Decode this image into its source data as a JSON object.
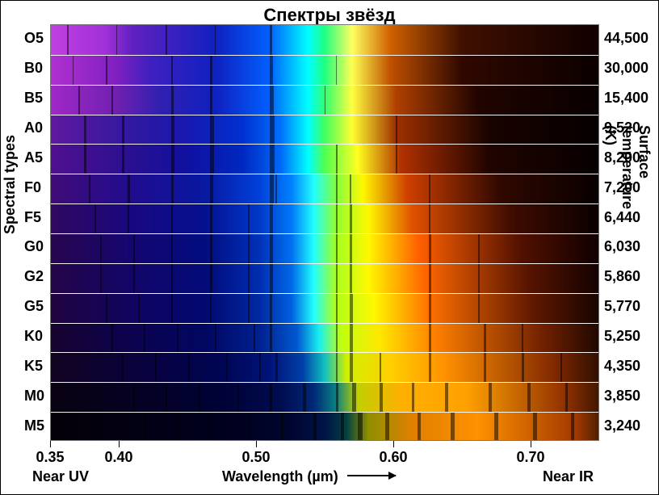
{
  "title": "Спектры звёзд",
  "title_fontsize": 22,
  "left_axis_title": "Spectral types",
  "right_axis_title": "Surface temperature (K)",
  "x_label_center": "Wavelength  (µm)",
  "x_near_uv": "Near UV",
  "x_near_ir": "Near IR",
  "axis_fontsize": 18,
  "row_label_fontsize": 18,
  "temp_label_fontsize": 18,
  "tick_fontsize": 18,
  "chart": {
    "type": "spectral-strips",
    "x_min_um": 0.35,
    "x_max_um": 0.75,
    "x_ticks": [
      0.35,
      0.4,
      0.5,
      0.6,
      0.7
    ],
    "row_separator_color": "#ffffff",
    "border_color": "#777777",
    "background_color": "#ffffff"
  },
  "rows": [
    {
      "type": "O5",
      "temp": "44,500",
      "gradient": [
        [
          "0%",
          "#c040e0"
        ],
        [
          "10%",
          "#a030d8"
        ],
        [
          "15%",
          "#6020c0"
        ],
        [
          "30%",
          "#1020c0"
        ],
        [
          "40%",
          "#0060ff"
        ],
        [
          "47%",
          "#00ffff"
        ],
        [
          "50%",
          "#20ff80"
        ],
        [
          "55%",
          "#ffff60"
        ],
        [
          "62%",
          "#d06000"
        ],
        [
          "75%",
          "#401000"
        ],
        [
          "100%",
          "#100000"
        ]
      ],
      "lines": [
        {
          "x": 0.03,
          "w": 2
        },
        {
          "x": 0.12,
          "w": 1
        },
        {
          "x": 0.21,
          "w": 2
        },
        {
          "x": 0.3,
          "w": 1
        },
        {
          "x": 0.4,
          "w": 3
        }
      ]
    },
    {
      "type": "B0",
      "temp": "30,000",
      "gradient": [
        [
          "0%",
          "#b030d0"
        ],
        [
          "12%",
          "#8020c0"
        ],
        [
          "18%",
          "#4020c0"
        ],
        [
          "30%",
          "#1020c0"
        ],
        [
          "40%",
          "#0060ff"
        ],
        [
          "47%",
          "#00ffff"
        ],
        [
          "50%",
          "#20ff80"
        ],
        [
          "55%",
          "#ffff50"
        ],
        [
          "62%",
          "#c05000"
        ],
        [
          "75%",
          "#300800"
        ],
        [
          "100%",
          "#0a0000"
        ]
      ],
      "lines": [
        {
          "x": 0.04,
          "w": 1
        },
        {
          "x": 0.1,
          "w": 2
        },
        {
          "x": 0.22,
          "w": 2
        },
        {
          "x": 0.29,
          "w": 3
        },
        {
          "x": 0.4,
          "w": 4
        },
        {
          "x": 0.52,
          "w": 1
        }
      ]
    },
    {
      "type": "B5",
      "temp": "15,400",
      "gradient": [
        [
          "0%",
          "#a028c8"
        ],
        [
          "12%",
          "#7020b0"
        ],
        [
          "20%",
          "#3020b0"
        ],
        [
          "30%",
          "#1020c0"
        ],
        [
          "40%",
          "#0060ff"
        ],
        [
          "47%",
          "#00ffff"
        ],
        [
          "50%",
          "#30ff70"
        ],
        [
          "55%",
          "#ffff40"
        ],
        [
          "63%",
          "#b04000"
        ],
        [
          "78%",
          "#200400"
        ],
        [
          "100%",
          "#080000"
        ]
      ],
      "lines": [
        {
          "x": 0.05,
          "w": 2
        },
        {
          "x": 0.11,
          "w": 2
        },
        {
          "x": 0.22,
          "w": 3
        },
        {
          "x": 0.29,
          "w": 3
        },
        {
          "x": 0.4,
          "w": 5
        },
        {
          "x": 0.5,
          "w": 1
        }
      ]
    },
    {
      "type": "A0",
      "temp": "9,520",
      "gradient": [
        [
          "0%",
          "#6018a0"
        ],
        [
          "15%",
          "#3018a0"
        ],
        [
          "25%",
          "#1818b0"
        ],
        [
          "35%",
          "#0030d0"
        ],
        [
          "42%",
          "#0070ff"
        ],
        [
          "47%",
          "#00ffff"
        ],
        [
          "50%",
          "#40ff60"
        ],
        [
          "55%",
          "#ffff30"
        ],
        [
          "63%",
          "#a03000"
        ],
        [
          "80%",
          "#180300"
        ],
        [
          "100%",
          "#060000"
        ]
      ],
      "lines": [
        {
          "x": 0.06,
          "w": 3
        },
        {
          "x": 0.13,
          "w": 3
        },
        {
          "x": 0.22,
          "w": 4
        },
        {
          "x": 0.29,
          "w": 5
        },
        {
          "x": 0.4,
          "w": 6
        },
        {
          "x": 0.63,
          "w": 2
        }
      ]
    },
    {
      "type": "A5",
      "temp": "8,200",
      "gradient": [
        [
          "0%",
          "#501090"
        ],
        [
          "15%",
          "#281090"
        ],
        [
          "25%",
          "#1010a0"
        ],
        [
          "35%",
          "#0028c0"
        ],
        [
          "42%",
          "#0068f8"
        ],
        [
          "47%",
          "#00ffff"
        ],
        [
          "50%",
          "#50ff50"
        ],
        [
          "56%",
          "#ffff20"
        ],
        [
          "64%",
          "#b03000"
        ],
        [
          "80%",
          "#200400"
        ],
        [
          "100%",
          "#060000"
        ]
      ],
      "lines": [
        {
          "x": 0.06,
          "w": 3
        },
        {
          "x": 0.13,
          "w": 3
        },
        {
          "x": 0.22,
          "w": 4
        },
        {
          "x": 0.29,
          "w": 5
        },
        {
          "x": 0.4,
          "w": 6
        },
        {
          "x": 0.52,
          "w": 2
        },
        {
          "x": 0.63,
          "w": 2
        }
      ]
    },
    {
      "type": "F0",
      "temp": "7,200",
      "gradient": [
        [
          "0%",
          "#400c78"
        ],
        [
          "15%",
          "#200c90"
        ],
        [
          "28%",
          "#0818a0"
        ],
        [
          "38%",
          "#0040d8"
        ],
        [
          "44%",
          "#0080ff"
        ],
        [
          "48%",
          "#20ffff"
        ],
        [
          "52%",
          "#80ff40"
        ],
        [
          "57%",
          "#fff800"
        ],
        [
          "65%",
          "#d04000"
        ],
        [
          "82%",
          "#300800"
        ],
        [
          "100%",
          "#080000"
        ]
      ],
      "lines": [
        {
          "x": 0.07,
          "w": 2
        },
        {
          "x": 0.14,
          "w": 3
        },
        {
          "x": 0.22,
          "w": 3
        },
        {
          "x": 0.29,
          "w": 4
        },
        {
          "x": 0.4,
          "w": 5
        },
        {
          "x": 0.41,
          "w": 2
        },
        {
          "x": 0.52,
          "w": 2
        },
        {
          "x": 0.545,
          "w": 2
        },
        {
          "x": 0.69,
          "w": 2
        }
      ]
    },
    {
      "type": "F5",
      "temp": "6,440",
      "gradient": [
        [
          "0%",
          "#300860"
        ],
        [
          "15%",
          "#180880"
        ],
        [
          "28%",
          "#041090"
        ],
        [
          "38%",
          "#0038c8"
        ],
        [
          "44%",
          "#0078f8"
        ],
        [
          "48%",
          "#20ffff"
        ],
        [
          "52%",
          "#90ff30"
        ],
        [
          "58%",
          "#fff800"
        ],
        [
          "66%",
          "#e05000"
        ],
        [
          "84%",
          "#400c00"
        ],
        [
          "100%",
          "#0a0000"
        ]
      ],
      "lines": [
        {
          "x": 0.08,
          "w": 2
        },
        {
          "x": 0.14,
          "w": 2
        },
        {
          "x": 0.22,
          "w": 2
        },
        {
          "x": 0.29,
          "w": 3
        },
        {
          "x": 0.36,
          "w": 2
        },
        {
          "x": 0.4,
          "w": 4
        },
        {
          "x": 0.52,
          "w": 2
        },
        {
          "x": 0.545,
          "w": 3
        },
        {
          "x": 0.69,
          "w": 2
        }
      ]
    },
    {
      "type": "G0",
      "temp": "6,030",
      "gradient": [
        [
          "0%",
          "#280650"
        ],
        [
          "15%",
          "#140670"
        ],
        [
          "28%",
          "#020c80"
        ],
        [
          "38%",
          "#0030b8"
        ],
        [
          "44%",
          "#0070f0"
        ],
        [
          "48%",
          "#20ffff"
        ],
        [
          "52%",
          "#a0ff20"
        ],
        [
          "58%",
          "#fff800"
        ],
        [
          "67%",
          "#ff6000"
        ],
        [
          "86%",
          "#501000"
        ],
        [
          "100%",
          "#100000"
        ]
      ],
      "lines": [
        {
          "x": 0.09,
          "w": 2
        },
        {
          "x": 0.15,
          "w": 2
        },
        {
          "x": 0.22,
          "w": 2
        },
        {
          "x": 0.29,
          "w": 3
        },
        {
          "x": 0.36,
          "w": 2
        },
        {
          "x": 0.4,
          "w": 4
        },
        {
          "x": 0.52,
          "w": 2
        },
        {
          "x": 0.545,
          "w": 3
        },
        {
          "x": 0.69,
          "w": 3
        },
        {
          "x": 0.78,
          "w": 2
        }
      ]
    },
    {
      "type": "G2",
      "temp": "5,860",
      "gradient": [
        [
          "0%",
          "#240548"
        ],
        [
          "15%",
          "#120568"
        ],
        [
          "28%",
          "#020a78"
        ],
        [
          "38%",
          "#002cb0"
        ],
        [
          "44%",
          "#0068e8"
        ],
        [
          "48%",
          "#20ffff"
        ],
        [
          "52%",
          "#a8ff20"
        ],
        [
          "58%",
          "#fff800"
        ],
        [
          "68%",
          "#ff6800"
        ],
        [
          "87%",
          "#581400"
        ],
        [
          "100%",
          "#140200"
        ]
      ],
      "lines": [
        {
          "x": 0.09,
          "w": 2
        },
        {
          "x": 0.15,
          "w": 2
        },
        {
          "x": 0.22,
          "w": 2
        },
        {
          "x": 0.29,
          "w": 3
        },
        {
          "x": 0.36,
          "w": 2
        },
        {
          "x": 0.4,
          "w": 4
        },
        {
          "x": 0.52,
          "w": 2
        },
        {
          "x": 0.545,
          "w": 3
        },
        {
          "x": 0.69,
          "w": 3
        },
        {
          "x": 0.78,
          "w": 2
        }
      ]
    },
    {
      "type": "G5",
      "temp": "5,770",
      "gradient": [
        [
          "0%",
          "#200440"
        ],
        [
          "15%",
          "#100460"
        ],
        [
          "28%",
          "#020870"
        ],
        [
          "38%",
          "#0028a0"
        ],
        [
          "44%",
          "#0060e0"
        ],
        [
          "48%",
          "#20ffff"
        ],
        [
          "52%",
          "#b0ff18"
        ],
        [
          "59%",
          "#fff800"
        ],
        [
          "69%",
          "#ff7000"
        ],
        [
          "88%",
          "#601800"
        ],
        [
          "100%",
          "#180400"
        ]
      ],
      "lines": [
        {
          "x": 0.1,
          "w": 2
        },
        {
          "x": 0.16,
          "w": 2
        },
        {
          "x": 0.22,
          "w": 2
        },
        {
          "x": 0.29,
          "w": 2
        },
        {
          "x": 0.36,
          "w": 2
        },
        {
          "x": 0.4,
          "w": 3
        },
        {
          "x": 0.52,
          "w": 2
        },
        {
          "x": 0.545,
          "w": 4
        },
        {
          "x": 0.69,
          "w": 3
        },
        {
          "x": 0.78,
          "w": 2
        }
      ]
    },
    {
      "type": "K0",
      "temp": "5,250",
      "gradient": [
        [
          "0%",
          "#180330"
        ],
        [
          "15%",
          "#0c0350"
        ],
        [
          "28%",
          "#010660"
        ],
        [
          "38%",
          "#002090"
        ],
        [
          "45%",
          "#0058d0"
        ],
        [
          "49%",
          "#18f0f0"
        ],
        [
          "53%",
          "#c0ff10"
        ],
        [
          "60%",
          "#ffe800"
        ],
        [
          "70%",
          "#ff8000"
        ],
        [
          "90%",
          "#702000"
        ],
        [
          "100%",
          "#200800"
        ]
      ],
      "lines": [
        {
          "x": 0.11,
          "w": 2
        },
        {
          "x": 0.17,
          "w": 2
        },
        {
          "x": 0.23,
          "w": 2
        },
        {
          "x": 0.3,
          "w": 2
        },
        {
          "x": 0.37,
          "w": 2
        },
        {
          "x": 0.4,
          "w": 3
        },
        {
          "x": 0.52,
          "w": 2
        },
        {
          "x": 0.545,
          "w": 4
        },
        {
          "x": 0.69,
          "w": 3
        },
        {
          "x": 0.79,
          "w": 3
        },
        {
          "x": 0.86,
          "w": 2
        }
      ]
    },
    {
      "type": "K5",
      "temp": "4,350",
      "gradient": [
        [
          "0%",
          "#100220"
        ],
        [
          "18%",
          "#080240"
        ],
        [
          "30%",
          "#000450"
        ],
        [
          "40%",
          "#001478"
        ],
        [
          "46%",
          "#0040a8"
        ],
        [
          "50%",
          "#10c0c0"
        ],
        [
          "54%",
          "#d0f000"
        ],
        [
          "62%",
          "#ffd000"
        ],
        [
          "72%",
          "#ff9000"
        ],
        [
          "92%",
          "#802800"
        ],
        [
          "100%",
          "#301000"
        ]
      ],
      "lines": [
        {
          "x": 0.13,
          "w": 2
        },
        {
          "x": 0.19,
          "w": 2
        },
        {
          "x": 0.25,
          "w": 2
        },
        {
          "x": 0.32,
          "w": 2
        },
        {
          "x": 0.38,
          "w": 2
        },
        {
          "x": 0.41,
          "w": 3
        },
        {
          "x": 0.52,
          "w": 2
        },
        {
          "x": 0.545,
          "w": 4
        },
        {
          "x": 0.6,
          "w": 2
        },
        {
          "x": 0.69,
          "w": 3
        },
        {
          "x": 0.79,
          "w": 3
        },
        {
          "x": 0.86,
          "w": 3
        },
        {
          "x": 0.93,
          "w": 2
        }
      ]
    },
    {
      "type": "M0",
      "temp": "3,850",
      "gradient": [
        [
          "0%",
          "#080110"
        ],
        [
          "20%",
          "#040128"
        ],
        [
          "32%",
          "#000238"
        ],
        [
          "42%",
          "#000c50"
        ],
        [
          "48%",
          "#002878"
        ],
        [
          "52%",
          "#088080"
        ],
        [
          "56%",
          "#c0d000"
        ],
        [
          "64%",
          "#ffb000"
        ],
        [
          "76%",
          "#ffa000"
        ],
        [
          "94%",
          "#903000"
        ],
        [
          "100%",
          "#401800"
        ]
      ],
      "lines": [
        {
          "x": 0.15,
          "w": 2
        },
        {
          "x": 0.21,
          "w": 2
        },
        {
          "x": 0.27,
          "w": 2
        },
        {
          "x": 0.34,
          "w": 2
        },
        {
          "x": 0.4,
          "w": 3
        },
        {
          "x": 0.46,
          "w": 4
        },
        {
          "x": 0.52,
          "w": 3
        },
        {
          "x": 0.55,
          "w": 5
        },
        {
          "x": 0.6,
          "w": 4
        },
        {
          "x": 0.66,
          "w": 3
        },
        {
          "x": 0.72,
          "w": 4
        },
        {
          "x": 0.8,
          "w": 4
        },
        {
          "x": 0.87,
          "w": 4
        },
        {
          "x": 0.94,
          "w": 3
        }
      ]
    },
    {
      "type": "M5",
      "temp": "3,240",
      "gradient": [
        [
          "0%",
          "#040008"
        ],
        [
          "22%",
          "#020018"
        ],
        [
          "34%",
          "#000020"
        ],
        [
          "44%",
          "#000630"
        ],
        [
          "50%",
          "#001448"
        ],
        [
          "54%",
          "#044040"
        ],
        [
          "58%",
          "#909000"
        ],
        [
          "66%",
          "#e08000"
        ],
        [
          "78%",
          "#ff9000"
        ],
        [
          "96%",
          "#a03800"
        ],
        [
          "100%",
          "#502000"
        ]
      ],
      "lines": [
        {
          "x": 0.17,
          "w": 2
        },
        {
          "x": 0.23,
          "w": 2
        },
        {
          "x": 0.29,
          "w": 2
        },
        {
          "x": 0.36,
          "w": 2
        },
        {
          "x": 0.42,
          "w": 3
        },
        {
          "x": 0.48,
          "w": 4
        },
        {
          "x": 0.53,
          "w": 4
        },
        {
          "x": 0.56,
          "w": 6
        },
        {
          "x": 0.61,
          "w": 5
        },
        {
          "x": 0.67,
          "w": 4
        },
        {
          "x": 0.73,
          "w": 5
        },
        {
          "x": 0.81,
          "w": 5
        },
        {
          "x": 0.88,
          "w": 5
        },
        {
          "x": 0.95,
          "w": 4
        }
      ]
    }
  ]
}
